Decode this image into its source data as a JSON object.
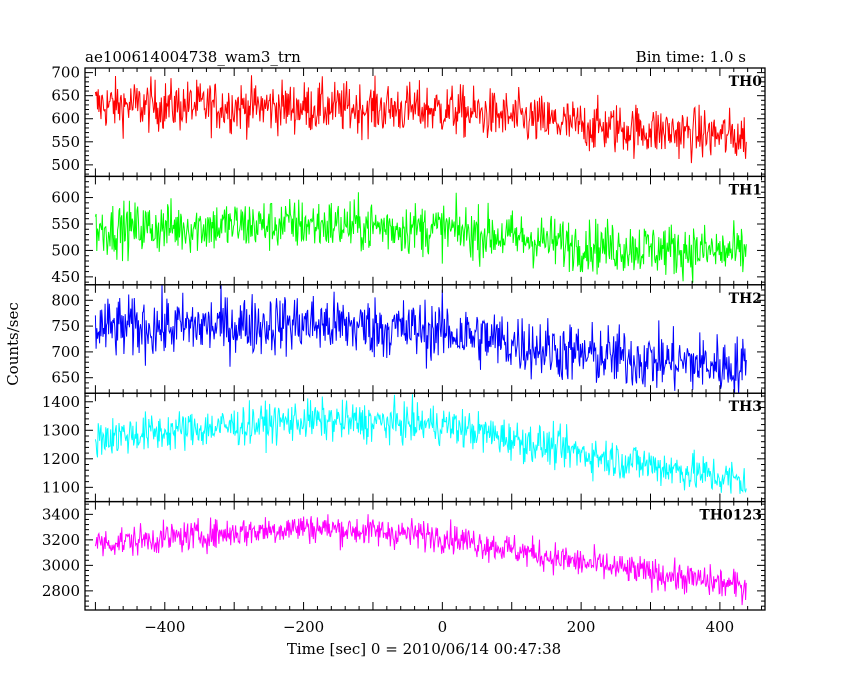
{
  "chart_data": {
    "type": "line",
    "title": "ae100614004738_wam3_trn",
    "bin_time_label": "Bin time: 1.0 s",
    "xlabel": "Time [sec] 0 = 2010/06/14 00:47:38",
    "ylabel": "Counts/sec",
    "xlim": [
      -515,
      465
    ],
    "x_ticks": [
      -400,
      -200,
      0,
      200,
      400
    ],
    "x_tick_labels": [
      "−400",
      "−200",
      "0",
      "200",
      "400"
    ],
    "x_range": [
      -500,
      438
    ],
    "panels": [
      {
        "name": "TH0",
        "color": "#ff0000",
        "ylim": [
          475,
          710
        ],
        "y_ticks": [
          500,
          550,
          600,
          650,
          700
        ],
        "y_tick_labels": [
          "500",
          "550",
          "600",
          "650",
          "700"
        ],
        "trend": [
          {
            "x": -500,
            "y": 630
          },
          {
            "x": -200,
            "y": 625
          },
          {
            "x": 0,
            "y": 620
          },
          {
            "x": 200,
            "y": 585
          },
          {
            "x": 438,
            "y": 560
          }
        ],
        "noise": 28
      },
      {
        "name": "TH1",
        "color": "#00ff00",
        "ylim": [
          435,
          640
        ],
        "y_ticks": [
          450,
          500,
          550,
          600
        ],
        "y_tick_labels": [
          "450",
          "500",
          "550",
          "600"
        ],
        "trend": [
          {
            "x": -500,
            "y": 540
          },
          {
            "x": -200,
            "y": 550
          },
          {
            "x": 0,
            "y": 540
          },
          {
            "x": 200,
            "y": 510
          },
          {
            "x": 438,
            "y": 495
          }
        ],
        "noise": 25
      },
      {
        "name": "TH2",
        "color": "#0000ff",
        "ylim": [
          620,
          830
        ],
        "y_ticks": [
          650,
          700,
          750,
          800
        ],
        "y_tick_labels": [
          "650",
          "700",
          "750",
          "800"
        ],
        "trend": [
          {
            "x": -500,
            "y": 745
          },
          {
            "x": -200,
            "y": 755
          },
          {
            "x": 0,
            "y": 740
          },
          {
            "x": 200,
            "y": 695
          },
          {
            "x": 438,
            "y": 670
          }
        ],
        "noise": 30
      },
      {
        "name": "TH3",
        "color": "#00ffff",
        "ylim": [
          1050,
          1430
        ],
        "y_ticks": [
          1100,
          1200,
          1300,
          1400
        ],
        "y_tick_labels": [
          "1100",
          "1200",
          "1300",
          "1400"
        ],
        "trend": [
          {
            "x": -500,
            "y": 1275
          },
          {
            "x": -200,
            "y": 1335
          },
          {
            "x": 0,
            "y": 1320
          },
          {
            "x": 200,
            "y": 1220
          },
          {
            "x": 438,
            "y": 1120
          }
        ],
        "noise": 35
      },
      {
        "name": "TH0123",
        "color": "#ff00ff",
        "ylim": [
          2650,
          3500
        ],
        "y_ticks": [
          2800,
          3000,
          3200,
          3400
        ],
        "y_tick_labels": [
          "2800",
          "3000",
          "3200",
          "3400"
        ],
        "trend": [
          {
            "x": -500,
            "y": 3170
          },
          {
            "x": -200,
            "y": 3300
          },
          {
            "x": 0,
            "y": 3230
          },
          {
            "x": 200,
            "y": 3020
          },
          {
            "x": 438,
            "y": 2830
          }
        ],
        "noise": 60
      }
    ]
  }
}
